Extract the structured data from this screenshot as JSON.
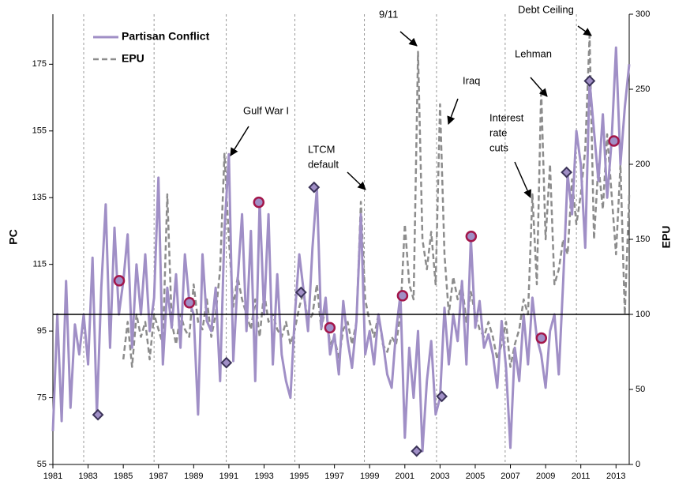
{
  "chart_data": {
    "type": "line",
    "y_label": "PC",
    "y2_label": "EPU",
    "xlim": [
      1981,
      2013.75
    ],
    "xticks": [
      1981,
      1983,
      1985,
      1987,
      1989,
      1991,
      1993,
      1995,
      1997,
      1999,
      2001,
      2003,
      2005,
      2007,
      2009,
      2011,
      2013
    ],
    "ylim": [
      55,
      190
    ],
    "yticks": [
      55,
      75,
      95,
      115,
      135,
      155,
      175
    ],
    "y2lim": [
      0,
      300
    ],
    "y2ticks": [
      0,
      50,
      100,
      150,
      200,
      250,
      300
    ],
    "event_lines": [
      1982.75,
      1986.75,
      1990.85,
      1994.75,
      1998.7,
      2002.8,
      2006.7,
      2010.75
    ],
    "reference_line": 100,
    "legend": "upper left",
    "series": [
      {
        "name": "Partisan Conflict",
        "color": "#a08fc6",
        "x": [
          1981,
          1981.25,
          1981.5,
          1981.75,
          1982,
          1982.25,
          1982.5,
          1982.75,
          1983,
          1983.25,
          1983.5,
          1983.75,
          1984,
          1984.25,
          1984.5,
          1984.75,
          1985,
          1985.25,
          1985.5,
          1985.75,
          1986,
          1986.25,
          1986.5,
          1986.75,
          1987,
          1987.25,
          1987.5,
          1987.75,
          1988,
          1988.25,
          1988.5,
          1988.75,
          1989,
          1989.25,
          1989.5,
          1989.75,
          1990,
          1990.25,
          1990.5,
          1990.75,
          1991,
          1991.25,
          1991.5,
          1991.75,
          1992,
          1992.25,
          1992.5,
          1992.75,
          1993,
          1993.25,
          1993.5,
          1993.75,
          1994,
          1994.25,
          1994.5,
          1994.75,
          1995,
          1995.25,
          1995.5,
          1995.75,
          1996,
          1996.25,
          1996.5,
          1996.75,
          1997,
          1997.25,
          1997.5,
          1997.75,
          1998,
          1998.25,
          1998.5,
          1998.75,
          1999,
          1999.25,
          1999.5,
          1999.75,
          2000,
          2000.25,
          2000.5,
          2000.75,
          2001,
          2001.25,
          2001.5,
          2001.75,
          2002,
          2002.25,
          2002.5,
          2002.75,
          2003,
          2003.25,
          2003.5,
          2003.75,
          2004,
          2004.25,
          2004.5,
          2004.75,
          2005,
          2005.25,
          2005.5,
          2005.75,
          2006,
          2006.25,
          2006.5,
          2006.75,
          2007,
          2007.25,
          2007.5,
          2007.75,
          2008,
          2008.25,
          2008.5,
          2008.75,
          2009,
          2009.25,
          2009.5,
          2009.75,
          2010,
          2010.25,
          2010.5,
          2010.75,
          2011,
          2011.25,
          2011.5,
          2011.75,
          2012,
          2012.25,
          2012.5,
          2012.75,
          2013,
          2013.25,
          2013.5,
          2013.75
        ],
        "values": [
          65,
          100,
          68,
          110,
          72,
          97,
          88,
          100,
          85,
          117,
          70,
          108,
          133,
          90,
          126,
          100,
          110,
          124,
          90,
          115,
          100,
          118,
          95,
          105,
          141,
          85,
          108,
          96,
          112,
          90,
          118,
          104,
          100,
          70,
          118,
          98,
          95,
          108,
          80,
          125,
          148,
          86,
          110,
          130,
          95,
          125,
          80,
          134,
          100,
          130,
          85,
          112,
          88,
          80,
          75,
          100,
          118,
          107,
          95,
          120,
          138,
          96,
          105,
          88,
          94,
          82,
          104,
          92,
          84,
          98,
          130,
          88,
          95,
          85,
          100,
          92,
          82,
          78,
          95,
          106,
          63,
          90,
          75,
          95,
          59,
          80,
          92,
          70,
          75,
          102,
          85,
          100,
          92,
          110,
          85,
          123,
          96,
          104,
          90,
          94,
          88,
          78,
          98,
          84,
          60,
          90,
          80,
          100,
          85,
          105,
          93,
          88,
          78,
          95,
          100,
          82,
          110,
          142,
          130,
          155,
          145,
          120,
          170,
          155,
          140,
          160,
          135,
          152,
          180,
          145,
          162,
          175
        ]
      },
      {
        "name": "EPU",
        "color": "#8c8c8c",
        "axis": "y2",
        "dashed": true,
        "x": [
          1985,
          1985.25,
          1985.5,
          1985.75,
          1986,
          1986.25,
          1986.5,
          1986.75,
          1987,
          1987.25,
          1987.5,
          1987.75,
          1988,
          1988.25,
          1988.5,
          1988.75,
          1989,
          1989.25,
          1989.5,
          1989.75,
          1990,
          1990.25,
          1990.5,
          1990.75,
          1991,
          1991.25,
          1991.5,
          1991.75,
          1992,
          1992.25,
          1992.5,
          1992.75,
          1993,
          1993.25,
          1993.5,
          1993.75,
          1994,
          1994.25,
          1994.5,
          1994.75,
          1995,
          1995.25,
          1995.5,
          1995.75,
          1996,
          1996.25,
          1996.5,
          1996.75,
          1997,
          1997.25,
          1997.5,
          1997.75,
          1998,
          1998.25,
          1998.5,
          1998.75,
          1999,
          1999.25,
          1999.5,
          1999.75,
          2000,
          2000.25,
          2000.5,
          2000.75,
          2001,
          2001.25,
          2001.5,
          2001.75,
          2002,
          2002.25,
          2002.5,
          2002.75,
          2003,
          2003.25,
          2003.5,
          2003.75,
          2004,
          2004.25,
          2004.5,
          2004.75,
          2005,
          2005.25,
          2005.5,
          2005.75,
          2006,
          2006.25,
          2006.5,
          2006.75,
          2007,
          2007.25,
          2007.5,
          2007.75,
          2008,
          2008.25,
          2008.5,
          2008.75,
          2009,
          2009.25,
          2009.5,
          2009.75,
          2010,
          2010.25,
          2010.5,
          2010.75,
          2011,
          2011.25,
          2011.5,
          2011.75,
          2012,
          2012.25,
          2012.5,
          2012.75,
          2013,
          2013.25,
          2013.5,
          2013.75
        ],
        "values": [
          70,
          95,
          65,
          100,
          85,
          95,
          70,
          100,
          90,
          80,
          180,
          95,
          80,
          100,
          90,
          85,
          120,
          95,
          90,
          110,
          85,
          100,
          130,
          207,
          150,
          105,
          125,
          110,
          100,
          90,
          110,
          85,
          115,
          95,
          100,
          90,
          85,
          95,
          80,
          90,
          105,
          115,
          95,
          100,
          120,
          90,
          105,
          80,
          85,
          70,
          90,
          95,
          80,
          95,
          175,
          110,
          95,
          85,
          100,
          80,
          75,
          85,
          80,
          100,
          160,
          120,
          110,
          275,
          150,
          130,
          155,
          120,
          240,
          140,
          100,
          125,
          110,
          120,
          95,
          115,
          100,
          90,
          85,
          95,
          85,
          70,
          80,
          95,
          65,
          80,
          90,
          110,
          100,
          180,
          120,
          250,
          150,
          200,
          120,
          130,
          150,
          140,
          190,
          160,
          180,
          210,
          286,
          150,
          200,
          170,
          220,
          180,
          140,
          200,
          100,
          180
        ]
      }
    ],
    "highlights": [
      {
        "shape": "diamond",
        "color": "#3b3358",
        "fill": "#a08fc6",
        "x": [
          1983.56,
          1990.86,
          1995.1,
          1995.84,
          2001.67,
          2003.1,
          2010.19,
          2011.5
        ],
        "values": [
          69.9,
          85.5,
          106.6,
          138.1,
          59,
          75.4,
          142.6,
          170
        ]
      },
      {
        "shape": "circle",
        "color": "#a3164a",
        "fill": "#a08fc6",
        "x": [
          1984.77,
          1988.76,
          1992.7,
          1996.74,
          2000.87,
          2004.77,
          2008.76,
          2012.88
        ],
        "values": [
          110.1,
          103.5,
          133.6,
          96,
          105.6,
          123.4,
          92.9,
          152
        ]
      }
    ],
    "annotations": [
      {
        "lines": [
          "Gulf War I"
        ]
      },
      {
        "lines": [
          "LTCM",
          "default"
        ]
      },
      {
        "lines": [
          "9/11"
        ]
      },
      {
        "lines": [
          "Iraq"
        ]
      },
      {
        "lines": [
          "Interest",
          "rate",
          "cuts"
        ]
      },
      {
        "lines": [
          "Lehman"
        ]
      },
      {
        "lines": [
          "Debt Ceiling"
        ]
      }
    ]
  }
}
